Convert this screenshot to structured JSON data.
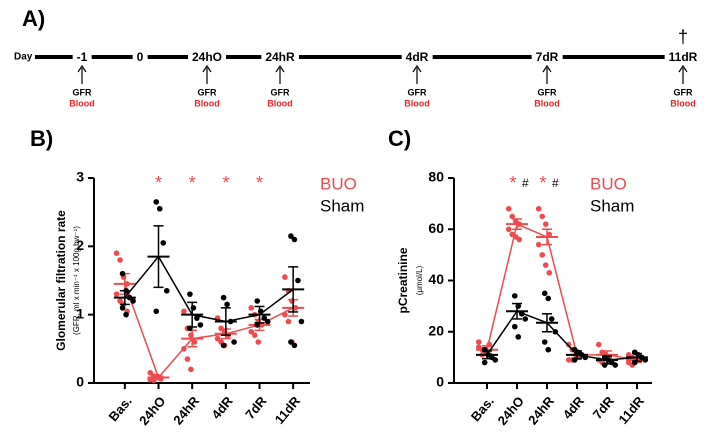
{
  "timeline": {
    "panel_label": "A)",
    "day_label": "Day",
    "dagger": "†",
    "points": [
      {
        "label": "-1",
        "measures": [
          "GFR",
          "Blood"
        ]
      },
      {
        "label": "0"
      },
      {
        "label": "24hO",
        "measures": [
          "GFR",
          "Blood"
        ]
      },
      {
        "label": "24hR",
        "measures": [
          "GFR",
          "Blood"
        ]
      },
      {
        "label": "4dR",
        "measures": [
          "GFR",
          "Blood"
        ]
      },
      {
        "label": "7dR",
        "measures": [
          "GFR",
          "Blood"
        ]
      },
      {
        "label": "11dR",
        "measures": [
          "GFR",
          "Blood"
        ]
      }
    ]
  },
  "chart_data": [
    {
      "type": "dot",
      "panel_label": "B)",
      "y_label": "Glomerular filtration rate",
      "y_sublabel": "(GFR, ml x min⁻¹ x 100g bw⁻¹)",
      "categories": [
        "Bas.",
        "24hO",
        "24hR",
        "4dR",
        "7dR",
        "11dR"
      ],
      "ylim": [
        0,
        3
      ],
      "yticks": [
        0,
        1,
        2,
        3
      ],
      "legend": "upper right",
      "series": [
        {
          "name": "BUO",
          "color": "#ee4b4f",
          "values": [
            1.45,
            0.08,
            0.65,
            0.72,
            0.85,
            1.1
          ],
          "errors": [
            0.15,
            0.02,
            0.12,
            0.07,
            0.08,
            0.12
          ],
          "annotations": [
            null,
            "*",
            "*",
            "*",
            "*",
            null
          ],
          "points": [
            [
              1.9,
              1.8,
              1.55,
              1.45,
              1.3,
              1.2,
              1.15,
              1.05
            ],
            [
              0.15,
              0.1,
              0.08,
              0.06,
              0.05,
              0.04,
              0.1
            ],
            [
              1.05,
              0.8,
              0.7,
              0.6,
              0.5,
              0.35,
              0.2
            ],
            [
              0.95,
              0.8,
              0.75,
              0.7,
              0.65,
              0.6,
              0.55
            ],
            [
              1.1,
              1.0,
              0.9,
              0.85,
              0.75,
              0.7,
              0.6
            ],
            [
              1.55,
              1.35,
              1.2,
              1.1,
              1.0,
              0.9,
              0.6
            ]
          ]
        },
        {
          "name": "Sham",
          "color": "#000000",
          "values": [
            1.25,
            1.85,
            1.0,
            0.9,
            1.0,
            1.37
          ],
          "errors": [
            0.1,
            0.45,
            0.18,
            0.2,
            0.12,
            0.33
          ],
          "points": [
            [
              1.6,
              1.35,
              1.25,
              1.2,
              1.1,
              1.0
            ],
            [
              2.65,
              2.55,
              2.05,
              1.35,
              1.05
            ],
            [
              1.3,
              1.1,
              0.95,
              0.85,
              0.8
            ],
            [
              1.25,
              1.15,
              0.9,
              0.6,
              0.55
            ],
            [
              1.2,
              1.05,
              0.95,
              0.9,
              0.85
            ],
            [
              2.15,
              2.1,
              1.5,
              0.9,
              0.6,
              0.55
            ]
          ]
        }
      ]
    },
    {
      "type": "dot",
      "panel_label": "C)",
      "y_label": "pCreatinine",
      "y_sublabel": "(µmol/L)",
      "categories": [
        "Bas.",
        "24hO",
        "24hR",
        "4dR",
        "7dR",
        "11dR"
      ],
      "ylim": [
        0,
        80
      ],
      "yticks": [
        0,
        20,
        40,
        60,
        80
      ],
      "legend": "upper right",
      "series": [
        {
          "name": "BUO",
          "color": "#ee4b4f",
          "values": [
            13,
            62,
            57,
            11,
            11,
            9
          ],
          "errors": [
            1.5,
            2,
            3,
            1.5,
            1.5,
            1
          ],
          "annotations": [
            null,
            "*",
            "*",
            null,
            null,
            null
          ],
          "points": [
            [
              14,
              13,
              12,
              15,
              16,
              11
            ],
            [
              68,
              65,
              63,
              62,
              60,
              58,
              57,
              56
            ],
            [
              68,
              65,
              62,
              58,
              54,
              50,
              46,
              43
            ],
            [
              15,
              13,
              11,
              10,
              9,
              9
            ],
            [
              15,
              12,
              11,
              10,
              9,
              8
            ],
            [
              11,
              10,
              9,
              9,
              8,
              7
            ]
          ]
        },
        {
          "name": "Sham",
          "color": "#000000",
          "values": [
            11,
            28,
            23.5,
            11,
            9,
            10
          ],
          "errors": [
            1.5,
            3,
            3.5,
            1.5,
            1.5,
            1.5
          ],
          "annotations": [
            null,
            "#",
            "#",
            null,
            null,
            null
          ],
          "points": [
            [
              13,
              11,
              10,
              9,
              8
            ],
            [
              34,
              30,
              27,
              25,
              22,
              18
            ],
            [
              35,
              33,
              25,
              20,
              16,
              13
            ],
            [
              13,
              12,
              11,
              10,
              9
            ],
            [
              10,
              9,
              8,
              7,
              7
            ],
            [
              12,
              11,
              10,
              9,
              8
            ]
          ]
        }
      ]
    }
  ]
}
